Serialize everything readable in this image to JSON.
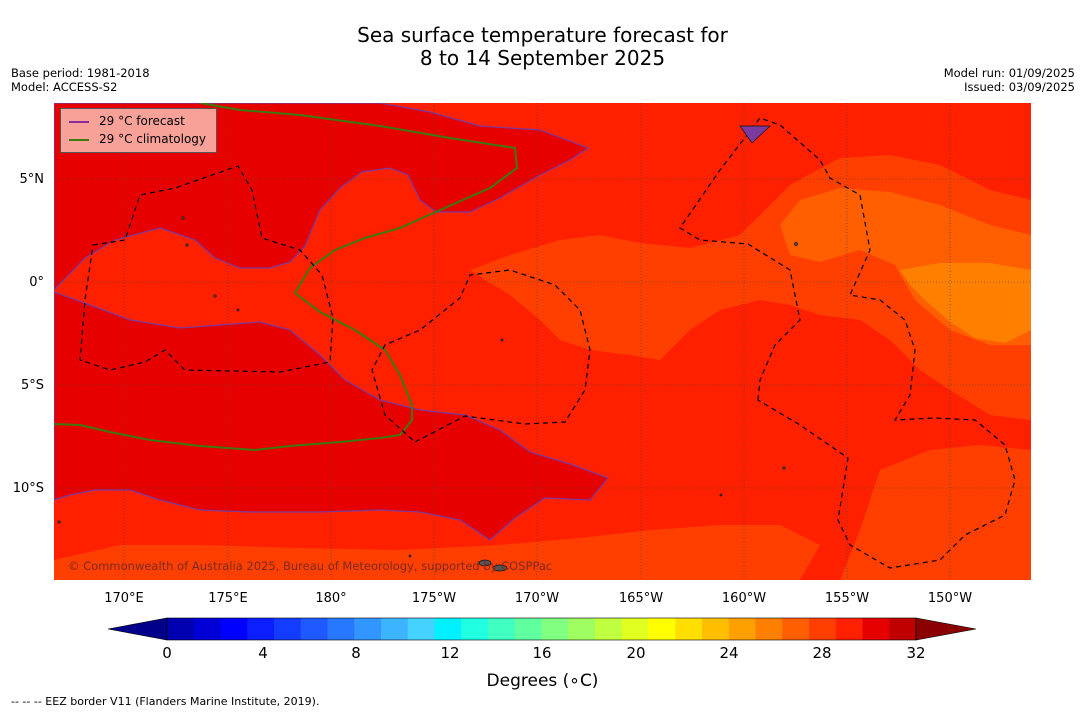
{
  "title_line1": "Sea surface temperature forecast for",
  "title_line2": "8 to 14 September 2025",
  "base_period": "Base period: 1981-2018",
  "model": "Model: ACCESS-S2",
  "model_run": "Model run: 01/09/2025",
  "issued": "Issued: 03/09/2025",
  "legend": [
    {
      "label": "29 °C  forecast",
      "color": "#8b2a9a"
    },
    {
      "label": "29 °C  climatology",
      "color": "#3c7a10"
    }
  ],
  "lon_ticks": [
    "170°E",
    "175°E",
    "180°",
    "175°W",
    "170°W",
    "165°W",
    "160°W",
    "155°W",
    "150°W"
  ],
  "lat_ticks": [
    "5°N",
    "0°",
    "5°S",
    "10°S"
  ],
  "copyright": "© Commonwealth of Australia 2025, Bureau of Meteorology, supported by COSPPac",
  "colorbar": {
    "ticks": [
      "0",
      "4",
      "8",
      "12",
      "16",
      "20",
      "24",
      "28",
      "32"
    ],
    "label": "Degrees (∘C)",
    "colors": [
      "#00008b",
      "#0000b0",
      "#0000d6",
      "#0000ff",
      "#0a1eff",
      "#143cff",
      "#1e5aff",
      "#2878ff",
      "#3296ff",
      "#3cb4ff",
      "#46d2ff",
      "#00f0ff",
      "#20ffe0",
      "#40ffc0",
      "#60ffa0",
      "#80ff80",
      "#a0ff60",
      "#c0ff40",
      "#e0ff20",
      "#ffff00",
      "#ffdf00",
      "#ffbf00",
      "#ff9f00",
      "#ff7f00",
      "#ff5f00",
      "#ff3f00",
      "#ff2000",
      "#e60000",
      "#c00000",
      "#8b0000"
    ]
  },
  "footer": "-- -- -- EEZ border V11 (Flanders Marine Institute, 2019)."
}
